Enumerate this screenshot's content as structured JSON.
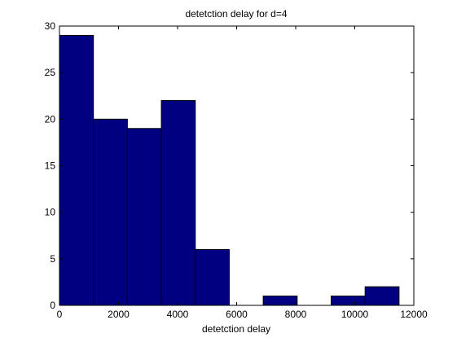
{
  "chart_data": {
    "type": "bar",
    "subtype": "histogram",
    "title": "detetction delay for d=4",
    "xlabel": "detetction delay",
    "ylabel": "",
    "xlim": [
      0,
      12000
    ],
    "ylim": [
      0,
      30
    ],
    "x_ticks": [
      0,
      2000,
      4000,
      6000,
      8000,
      10000,
      12000
    ],
    "y_ticks": [
      0,
      5,
      10,
      15,
      20,
      25,
      30
    ],
    "bin_edges": [
      0,
      1150,
      2300,
      3450,
      4600,
      5750,
      6900,
      8050,
      9200,
      10350,
      11500
    ],
    "values": [
      29,
      20,
      19,
      22,
      6,
      0,
      1,
      0,
      1,
      2
    ],
    "bar_color": "#000080",
    "edge_color": "#000000",
    "grid": false,
    "legend": "none"
  }
}
